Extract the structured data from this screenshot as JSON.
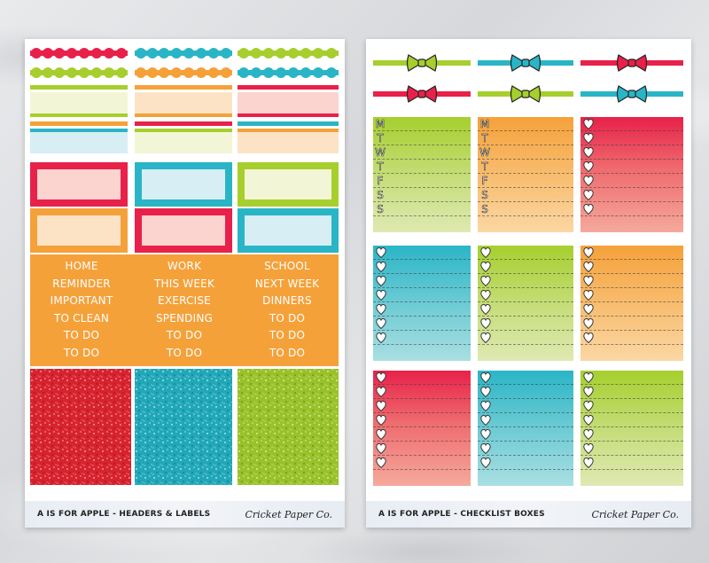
{
  "left_sheet": {
    "footer_title": "A IS FOR APPLE - HEADERS & LABELS",
    "brand": "Cricket Paper Co.",
    "word_columns": [
      [
        "HOME",
        "REMINDER",
        "IMPORTANT",
        "TO CLEAN",
        "TO DO",
        "TO DO"
      ],
      [
        "WORK",
        "THIS WEEK",
        "EXERCISE",
        "SPENDING",
        "TO DO",
        "TO DO"
      ],
      [
        "SCHOOL",
        "NEXT WEEK",
        "DINNERS",
        "TO DO",
        "TO DO",
        "TO DO"
      ]
    ]
  },
  "right_sheet": {
    "footer_title": "A IS FOR APPLE - CHECKLIST BOXES",
    "brand": "Cricket Paper Co.",
    "weekday_letters": [
      "M",
      "T",
      "W",
      "T",
      "F",
      "S",
      "S"
    ]
  },
  "colors": {
    "red": "#e8214a",
    "teal": "#2ab5c6",
    "lime": "#a6cf2e",
    "orange": "#f5a13a",
    "pink_fill": "#fbd3cf",
    "blue_fill": "#d7eef4",
    "cream_fill": "#f3f6d6",
    "peach_fill": "#fde3c6"
  },
  "icons": {
    "bow": "bow-icon",
    "heart_check": "heart-check-icon"
  }
}
